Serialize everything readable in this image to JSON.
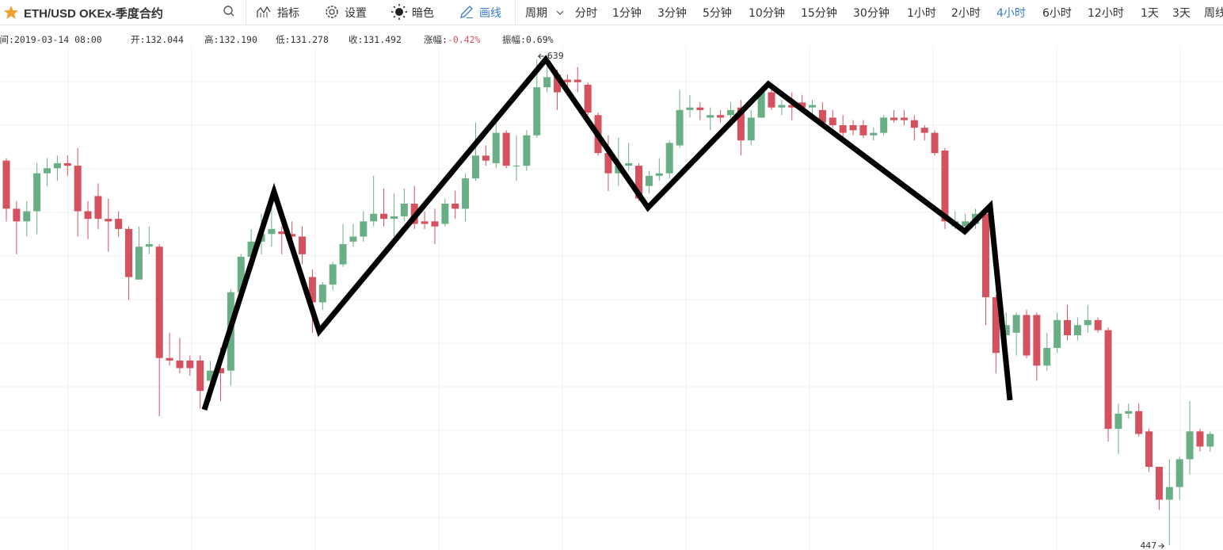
{
  "toolbar": {
    "symbol": "ETH/USD OKEx-季度合约",
    "tools": [
      "指标",
      "设置",
      "暗色",
      "画线"
    ],
    "period_label": "周期",
    "periods": [
      "分时",
      "1分钟",
      "3分钟",
      "5分钟",
      "10分钟",
      "15分钟",
      "30分钟",
      "1小时",
      "2小时",
      "4小时",
      "6小时",
      "12小时",
      "1天",
      "3天",
      "周线"
    ]
  },
  "info": [
    {
      "label": "时间:",
      "value": "2019-03-14 08:00"
    },
    {
      "label": "开:",
      "value": "132.044"
    },
    {
      "label": "高:",
      "value": "132.190"
    },
    {
      "label": "低:",
      "value": "131.278"
    },
    {
      "label": "收:",
      "value": "131.492"
    },
    {
      "label": "涨幅:",
      "value": "-0.42%"
    },
    {
      "label": "振幅:",
      "value": "0.69%"
    }
  ],
  "chart_data": {
    "type": "candlestick",
    "ylim": [
      447,
      639
    ],
    "up_color": "#6aae86",
    "down_color": "#d4515d",
    "high_marker": 639,
    "low_marker": 447,
    "open": [
      599,
      580,
      575,
      579,
      594,
      596,
      598,
      597,
      579,
      585,
      576,
      576,
      572,
      552,
      565,
      565,
      521,
      520,
      520,
      520,
      512,
      517,
      516,
      547,
      561,
      567,
      570,
      571,
      570,
      569,
      553,
      543,
      550,
      558,
      567,
      569,
      575,
      578,
      576,
      577,
      582,
      575,
      575,
      574,
      582,
      580,
      592,
      601,
      598,
      610,
      597,
      597,
      609,
      628,
      633,
      631,
      631,
      629,
      617,
      602,
      594,
      597,
      597,
      589,
      593,
      594,
      605,
      619,
      620,
      616,
      617,
      617,
      620,
      607,
      616,
      626,
      620,
      621,
      622,
      620,
      619,
      616,
      613,
      613,
      613,
      609,
      610,
      616,
      616,
      615,
      612,
      610,
      603,
      573,
      573,
      574,
      578,
      545,
      530,
      531,
      538,
      538,
      518,
      525,
      536,
      530,
      534,
      536,
      532,
      493,
      499,
      500,
      492,
      478,
      465,
      470,
      481,
      492,
      486
    ],
    "high": [
      600,
      583,
      583,
      598,
      600,
      601,
      601,
      604,
      583,
      590,
      584,
      579,
      573,
      573,
      573,
      566,
      531,
      529,
      522,
      522,
      520,
      525,
      548,
      562,
      572,
      578,
      586,
      573,
      575,
      573,
      556,
      551,
      559,
      574,
      574,
      579,
      593,
      588,
      586,
      588,
      589,
      579,
      580,
      584,
      587,
      594,
      614,
      605,
      616,
      611,
      609,
      611,
      639,
      636,
      635,
      633,
      636,
      630,
      618,
      609,
      608,
      606,
      598,
      595,
      600,
      607,
      627,
      625,
      622,
      620,
      619,
      622,
      623,
      619,
      628,
      628,
      623,
      626,
      625,
      623,
      622,
      619,
      617,
      615,
      615,
      612,
      617,
      619,
      619,
      617,
      613,
      611,
      604,
      579,
      578,
      580,
      580,
      546,
      539,
      539,
      540,
      539,
      531,
      539,
      542,
      537,
      542,
      537,
      533,
      503,
      503,
      503,
      493,
      478,
      481,
      482,
      504,
      493,
      492
    ],
    "low": [
      575,
      562,
      569,
      570,
      589,
      591,
      593,
      569,
      568,
      572,
      563,
      569,
      544,
      552,
      562,
      498,
      518,
      515,
      514,
      501,
      504,
      504,
      510,
      543,
      556,
      562,
      565,
      562,
      567,
      558,
      531,
      540,
      548,
      557,
      565,
      567,
      573,
      573,
      569,
      575,
      572,
      572,
      566,
      573,
      576,
      575,
      591,
      597,
      596,
      596,
      591,
      595,
      608,
      626,
      619,
      627,
      626,
      617,
      601,
      587,
      589,
      595,
      583,
      586,
      591,
      592,
      604,
      616,
      615,
      611,
      614,
      616,
      601,
      605,
      616,
      619,
      617,
      615,
      619,
      617,
      612,
      612,
      608,
      609,
      608,
      607,
      609,
      614,
      613,
      607,
      607,
      601,
      572,
      572,
      570,
      572,
      534,
      515,
      515,
      522,
      521,
      512,
      516,
      523,
      528,
      528,
      531,
      531,
      488,
      483,
      497,
      490,
      476,
      461,
      447,
      465,
      475,
      484,
      484
    ],
    "close": [
      580,
      575,
      579,
      594,
      596,
      598,
      597,
      579,
      576,
      576,
      575,
      572,
      553,
      565,
      566,
      521,
      520,
      517,
      517,
      508,
      516,
      515,
      547,
      561,
      567,
      570,
      572,
      570,
      569,
      562,
      543,
      550,
      558,
      566,
      569,
      575,
      578,
      576,
      577,
      582,
      574,
      574,
      573,
      582,
      580,
      592,
      601,
      599,
      610,
      597,
      597,
      609,
      628,
      632,
      626,
      630,
      630,
      618,
      602,
      594,
      597,
      598,
      584,
      593,
      594,
      606,
      619,
      620,
      619,
      617,
      616,
      619,
      607,
      616,
      626,
      620,
      621,
      620,
      620,
      621,
      614,
      613,
      610,
      611,
      609,
      610,
      616,
      615,
      615,
      612,
      610,
      602,
      575,
      575,
      575,
      578,
      545,
      523,
      534,
      538,
      522,
      518,
      525,
      536,
      530,
      534,
      536,
      532,
      493,
      499,
      500,
      491,
      478,
      465,
      470,
      481,
      492,
      486,
      491
    ]
  }
}
